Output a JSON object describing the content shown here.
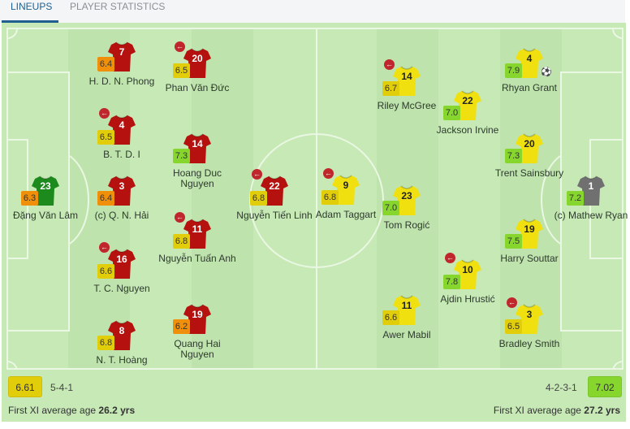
{
  "tabs": [
    {
      "label": "LINEUPS",
      "active": true
    },
    {
      "label": "PLAYER STATISTICS",
      "active": false
    }
  ],
  "colors": {
    "home_kit": "#b5120f",
    "home_gk": "#1d8a1d",
    "away_kit": "#f0e010",
    "away_gk": "#707070",
    "rating_low": "#f0900a",
    "rating_mid": "#e2cd0a",
    "rating_high": "#86d62e",
    "sub_icon": "#c0272d"
  },
  "home": {
    "rating": "6.61",
    "formation": "5-4-1",
    "age_label": "First XI average age",
    "age_value": "26.2 yrs",
    "players": [
      {
        "number": "23",
        "name": "Đặng Văn Lâm",
        "rating": "6.3",
        "gk": true,
        "sub": false
      },
      {
        "number": "7",
        "name": "H. D. N. Phong",
        "rating": "6.4",
        "sub": false
      },
      {
        "number": "4",
        "name": "B. T. D. I",
        "rating": "6.5",
        "sub": true
      },
      {
        "number": "3",
        "name": "(c) Q. N. Hải",
        "rating": "6.4",
        "sub": false
      },
      {
        "number": "16",
        "name": "T. C. Nguyen",
        "rating": "6.6",
        "sub": true
      },
      {
        "number": "8",
        "name": "N. T. Hoàng",
        "rating": "6.8",
        "sub": false
      },
      {
        "number": "20",
        "name": "Phan Văn Đức",
        "rating": "6.5",
        "sub": true
      },
      {
        "number": "14",
        "name": "Hoang Duc Nguyen",
        "rating": "7.3",
        "sub": false
      },
      {
        "number": "11",
        "name": "Nguyễn Tuấn Anh",
        "rating": "6.8",
        "sub": true
      },
      {
        "number": "19",
        "name": "Quang Hai Nguyen",
        "rating": "6.2",
        "sub": false
      },
      {
        "number": "22",
        "name": "Nguyễn Tiến Linh",
        "rating": "6.8",
        "sub": true
      }
    ]
  },
  "away": {
    "rating": "7.02",
    "formation": "4-2-3-1",
    "age_label": "First XI average age",
    "age_value": "27.2 yrs",
    "players": [
      {
        "number": "9",
        "name": "Adam Taggart",
        "rating": "6.8",
        "sub": true
      },
      {
        "number": "14",
        "name": "Riley McGree",
        "rating": "6.7",
        "sub": true
      },
      {
        "number": "23",
        "name": "Tom Rogić",
        "rating": "7.0",
        "sub": false
      },
      {
        "number": "11",
        "name": "Awer Mabil",
        "rating": "6.6",
        "sub": false
      },
      {
        "number": "22",
        "name": "Jackson Irvine",
        "rating": "7.0",
        "sub": false
      },
      {
        "number": "10",
        "name": "Ajdin Hrustić",
        "rating": "7.8",
        "sub": true
      },
      {
        "number": "4",
        "name": "Rhyan Grant",
        "rating": "7.9",
        "sub": false,
        "goal": true
      },
      {
        "number": "20",
        "name": "Trent Sainsbury",
        "rating": "7.3",
        "sub": false
      },
      {
        "number": "19",
        "name": "Harry Souttar",
        "rating": "7.5",
        "sub": false
      },
      {
        "number": "3",
        "name": "Bradley Smith",
        "rating": "6.5",
        "sub": true
      },
      {
        "number": "1",
        "name": "(c) Mathew Ryan",
        "rating": "7.2",
        "gk": true,
        "sub": false
      }
    ]
  }
}
